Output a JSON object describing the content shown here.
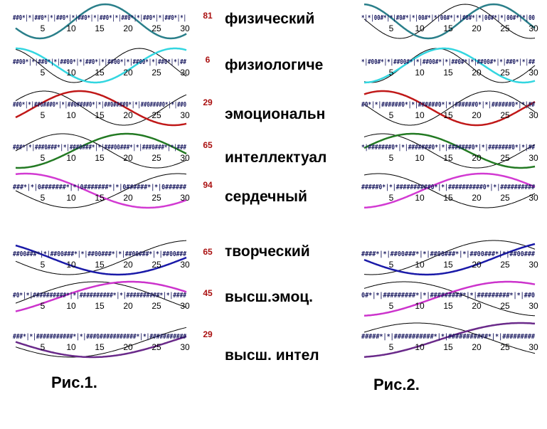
{
  "labels": [
    "физический",
    "физиологиче",
    "эмоциональн",
    "интеллектуал",
    "сердечный",
    "творческий",
    "высш.эмоц.",
    "высш. интел"
  ],
  "figure_captions": {
    "left": "Рис.1.",
    "right": "Рис.2."
  },
  "tick_labels": [
    "5",
    "10",
    "15",
    "20",
    "25",
    "30"
  ],
  "colors": {
    "physical": "#2a7f8a",
    "physiological": "#33d6e0",
    "emotional": "#c01818",
    "intellectual": "#237a23",
    "heart": "#d23ad2",
    "creative": "#1a1aa8",
    "higher_emotional": "#cc33cc",
    "higher_intellectual": "#6a2a8a",
    "text": "#000000",
    "number": "#aa1111",
    "mark": "#cc3333"
  },
  "chart_data": [
    {
      "type": "line",
      "title": "Рис.1.",
      "xlabel": "",
      "ylabel": "",
      "xlim": [
        1,
        31
      ],
      "ylim": [
        -1,
        1
      ],
      "grid": false,
      "x_ticks": [
        5,
        10,
        15,
        20,
        25,
        30
      ],
      "panels": [
        {
          "label": "физический",
          "number": 81,
          "marks": "##0*|*|##0*|*|##0*|*|##0*|*|##0*|*|##0*|*|##0*|*|##0*|*|",
          "series": [
            {
              "color": "#2a7f8a",
              "period": 23,
              "phase": 81
            }
          ],
          "ref_series": {
            "color": "#000000",
            "period": 23,
            "phase": 81,
            "thin": true
          }
        },
        {
          "label": "физиологиче",
          "number": 6,
          "marks": "##00*|*|##0*|*|##00*|*|##0*|*|##00*|*|##00*|*|##0*|*|##",
          "series": [
            {
              "color": "#33d6e0",
              "period": 28,
              "phase": 6
            }
          ],
          "ref_series": {
            "color": "#000000",
            "period": 23,
            "phase": 6,
            "thin": true
          }
        },
        {
          "label": "эмоциональн",
          "number": 29,
          "marks": "##0*|*|##0###0*|*|##0####0*|*|##0####0*|*|##0####0*|*|##0",
          "series": [
            {
              "color": "#c01818",
              "period": 33,
              "phase": 29
            }
          ],
          "ref_series": {
            "color": "#000000",
            "period": 28,
            "phase": 29,
            "thin": true
          }
        },
        {
          "label": "интеллектуал",
          "number": 65,
          "marks": "###*|*|###0###*|*|###0###*|*|###00###*|*|###0###*|*|###",
          "series": [
            {
              "color": "#237a23",
              "period": 38,
              "phase": 65
            }
          ],
          "ref_series": {
            "color": "#000000",
            "period": 33,
            "phase": 65,
            "thin": true
          }
        },
        {
          "label": "сердечный",
          "number": 94,
          "marks": "###*|*|0#######*|*|0#######*|*|0######*|*|0######",
          "series": [
            {
              "color": "#d23ad2",
              "period": 43,
              "phase": 94
            }
          ],
          "ref_series": {
            "color": "#000000",
            "period": 38,
            "phase": 94,
            "thin": true
          }
        },
        {
          "label": "творческий",
          "number": 65,
          "marks": "##00###*|*|##00###*|*|##00###*|*|##00###*|*|##00###",
          "series": [
            {
              "color": "#1a1aa8",
              "period": 48,
              "phase": 65
            }
          ],
          "ref_series": {
            "color": "#000000",
            "period": 43,
            "phase": 65,
            "thin": true
          }
        },
        {
          "label": "высш.эмоц.",
          "number": 45,
          "marks": "#0*|*|##########*|*|##########*|*|##########*|*|####",
          "series": [
            {
              "color": "#cc33cc",
              "period": 53,
              "phase": 45
            }
          ],
          "ref_series": {
            "color": "#000000",
            "period": 48,
            "phase": 45,
            "thin": true
          }
        },
        {
          "label": "высш. интел",
          "number": 29,
          "marks": "###*|*|###########*|*|###0###########*|*|###########",
          "series": [
            {
              "color": "#6a2a8a",
              "period": 58,
              "phase": 29
            }
          ],
          "ref_series": {
            "color": "#000000",
            "period": 53,
            "phase": 29,
            "thin": true
          }
        }
      ]
    },
    {
      "type": "line",
      "title": "Рис.2.",
      "xlabel": "",
      "ylabel": "",
      "xlim": [
        1,
        31
      ],
      "ylim": [
        -1,
        1
      ],
      "grid": false,
      "x_ticks": [
        5,
        10,
        15,
        20,
        25,
        30
      ],
      "panels": [
        {
          "label": "физический",
          "marks": "*|*|00#*|*|#0#*|*|00#*|*|00#*|*|#0#*|*|00#*|*|00#*|*|00",
          "series": [
            {
              "color": "#2a7f8a",
              "period": 23,
              "phase": 5
            }
          ],
          "ref_series": {
            "color": "#000000",
            "period": 23,
            "phase": 10,
            "thin": true
          }
        },
        {
          "label": "физиологиче",
          "marks": "*|#00#*|*|##00#*|*|##00#*|*|##0#*|*|##00#*|*|##0*|*|##",
          "series": [
            {
              "color": "#33d6e0",
              "period": 28,
              "phase": 20
            }
          ],
          "ref_series": {
            "color": "#000000",
            "period": 23,
            "phase": 15,
            "thin": true
          }
        },
        {
          "label": "эмоциональн",
          "marks": "#0*|*|######0*|*|######0*|*|######0*|*|######0*|*|##",
          "series": [
            {
              "color": "#c01818",
              "period": 33,
              "phase": 4
            }
          ],
          "ref_series": {
            "color": "#000000",
            "period": 28,
            "phase": 12,
            "thin": true
          }
        },
        {
          "label": "интеллектуал",
          "marks": "*|#######0*|*|#######0*|*|#######0*|*|#######0*|*|##",
          "series": [
            {
              "color": "#237a23",
              "period": 38,
              "phase": 0
            }
          ],
          "ref_series": {
            "color": "#000000",
            "period": 33,
            "phase": 4,
            "thin": true
          }
        },
        {
          "label": "сердечный",
          "marks": "#####0*|*|##########0*|*|##########0*|*|##########",
          "series": [
            {
              "color": "#d23ad2",
              "period": 43,
              "phase": 32
            }
          ],
          "ref_series": {
            "color": "#000000",
            "period": 38,
            "phase": 44,
            "thin": true
          }
        },
        {
          "label": "творческий",
          "marks": "####*|*|##00###*|*|##00###*|*|##00###*|*|##00###",
          "series": [
            {
              "color": "#1a1aa8",
              "period": 48,
              "phase": 24
            }
          ],
          "ref_series": {
            "color": "#000000",
            "period": 43,
            "phase": 30,
            "thin": true
          }
        },
        {
          "label": "высш.эмоц.",
          "marks": "0#*|*|#########*|*|#########*|*|#########*|*|##0",
          "series": [
            {
              "color": "#cc33cc",
              "period": 53,
              "phase": 40
            }
          ],
          "ref_series": {
            "color": "#000000",
            "period": 48,
            "phase": 4,
            "thin": true
          }
        },
        {
          "label": "высш. интел",
          "marks": "#####*|*|###########*|*|###########*|*|#########",
          "series": [
            {
              "color": "#6a2a8a",
              "period": 58,
              "phase": 44
            }
          ],
          "ref_series": {
            "color": "#000000",
            "period": 53,
            "phase": 56,
            "thin": true
          }
        }
      ]
    }
  ]
}
